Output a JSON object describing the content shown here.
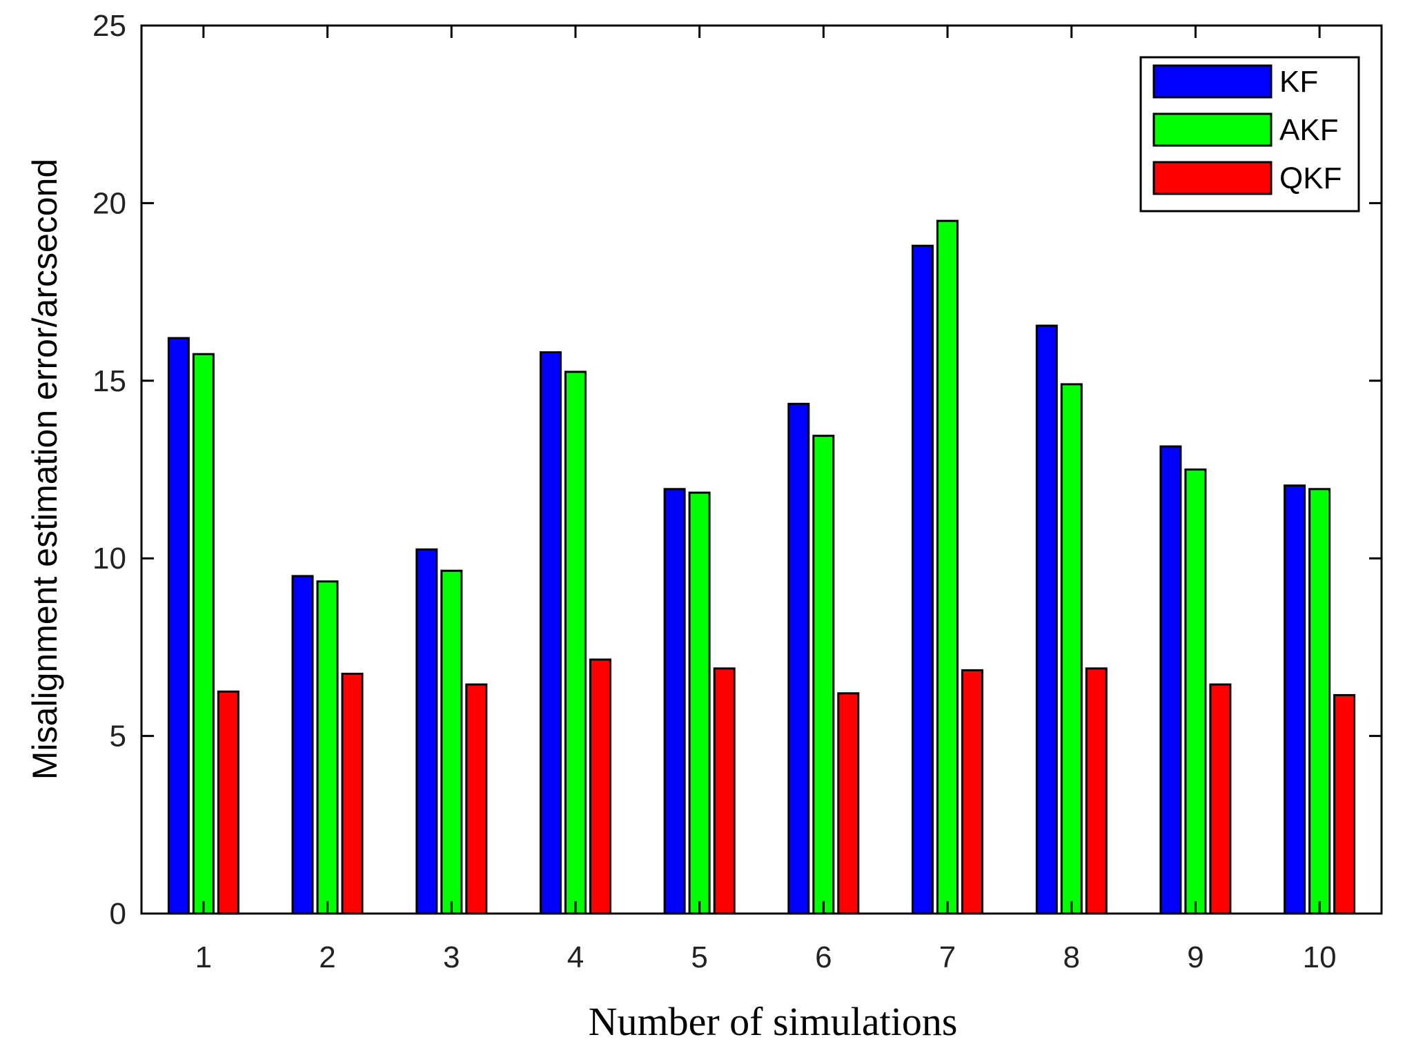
{
  "chart_data": {
    "type": "bar",
    "title": "",
    "xlabel": "Number of simulations",
    "ylabel": "Misalignment estimation error/arcsecond",
    "categories": [
      "1",
      "2",
      "3",
      "4",
      "5",
      "6",
      "7",
      "8",
      "9",
      "10"
    ],
    "ylim": [
      0,
      25
    ],
    "yticks": [
      "0",
      "5",
      "10",
      "15",
      "20",
      "25"
    ],
    "grid": false,
    "legend_position": "top-right",
    "series": [
      {
        "name": "KF",
        "color": "#0000ff",
        "values": [
          16.2,
          9.5,
          10.25,
          15.8,
          11.95,
          14.35,
          18.8,
          16.55,
          13.15,
          12.05
        ]
      },
      {
        "name": "AKF",
        "color": "#00ff00",
        "values": [
          15.75,
          9.35,
          9.65,
          15.25,
          11.85,
          13.45,
          19.5,
          14.9,
          12.5,
          11.95
        ]
      },
      {
        "name": "QKF",
        "color": "#ff0000",
        "values": [
          6.25,
          6.75,
          6.45,
          7.15,
          6.9,
          6.2,
          6.85,
          6.9,
          6.45,
          6.15
        ]
      }
    ]
  }
}
